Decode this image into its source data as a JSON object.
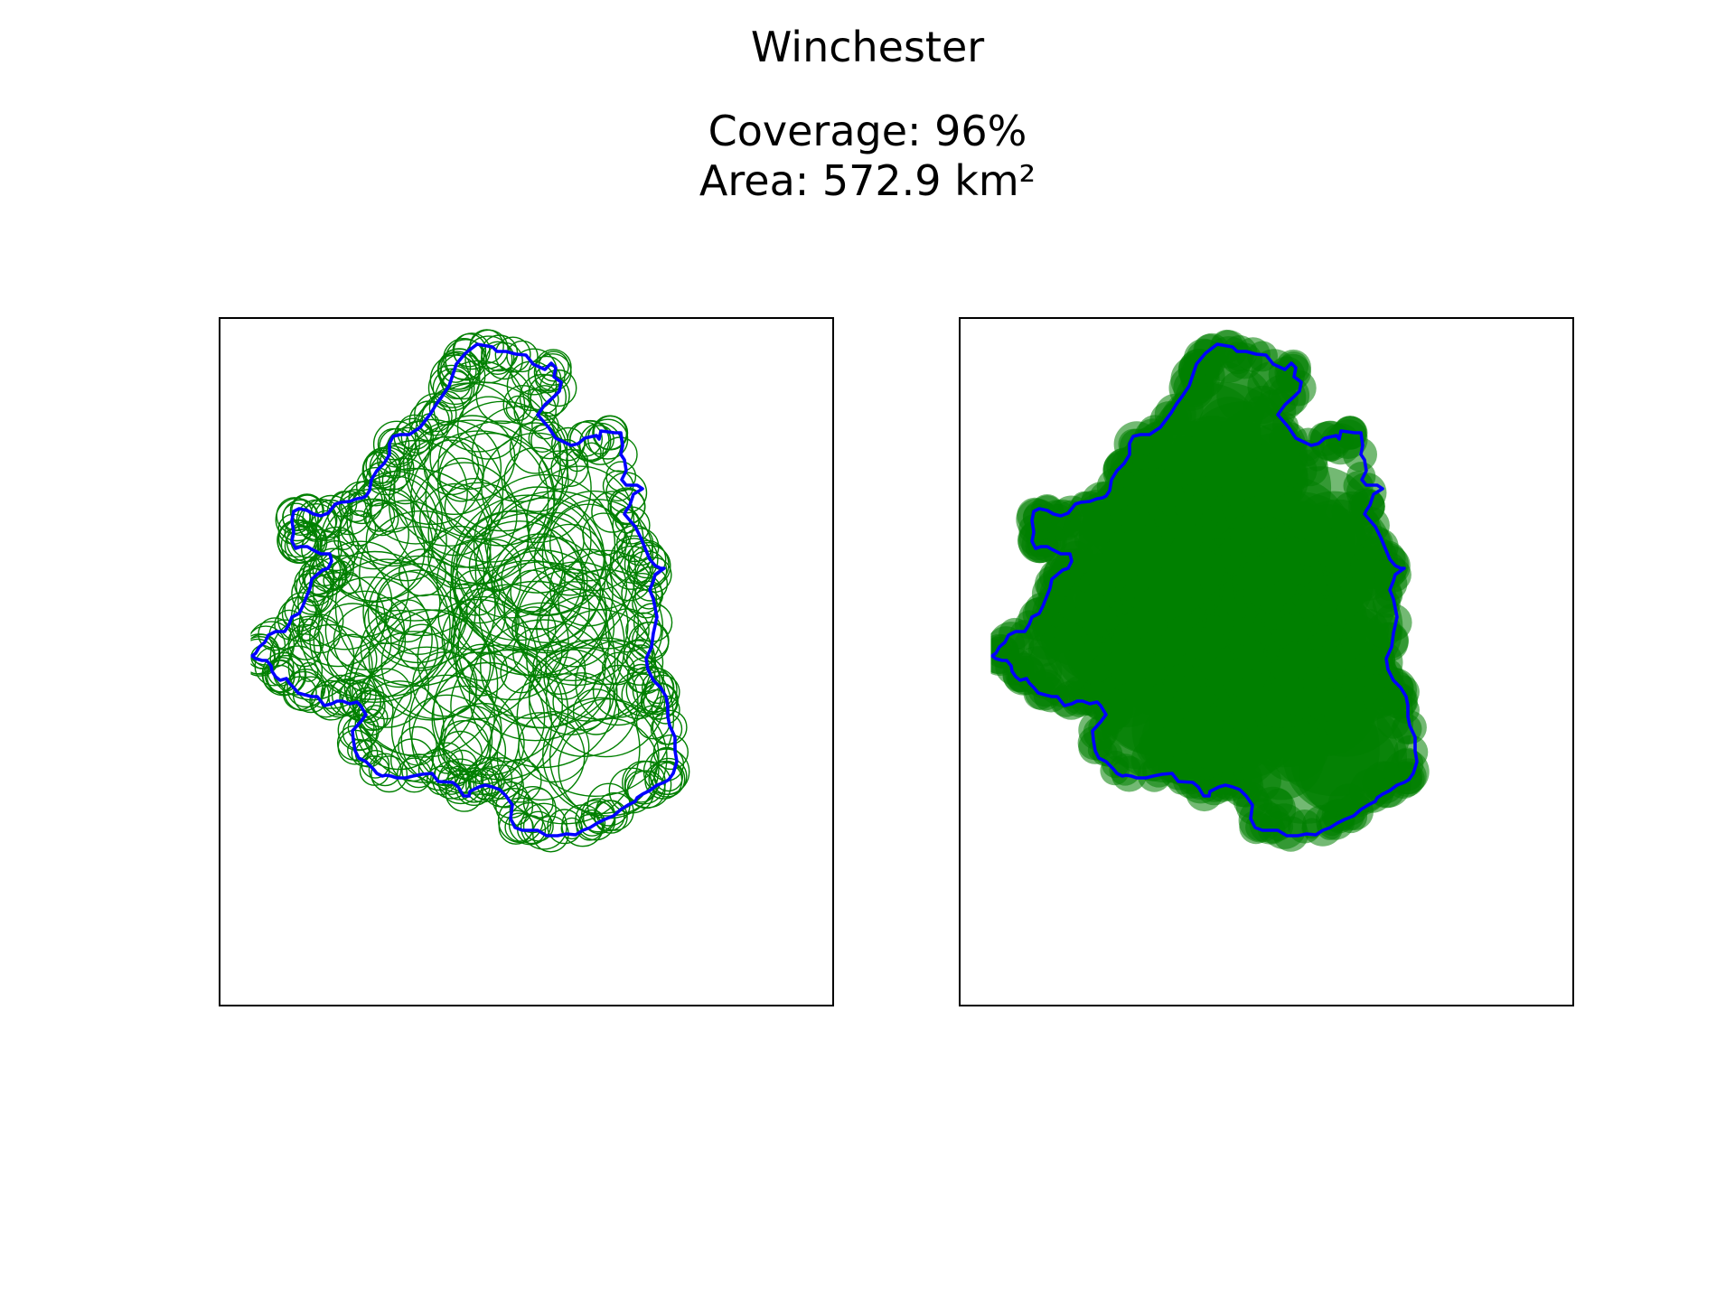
{
  "figure": {
    "title": "Winchester",
    "coverage_line": "Coverage: 96%",
    "area_line": "Area: 572.9 km²"
  },
  "stats": {
    "coverage_percent": 96,
    "area_km2": 572.9
  },
  "panels": [
    {
      "id": "outline-circles",
      "mode": "outline"
    },
    {
      "id": "filled-circles",
      "mode": "filled"
    }
  ],
  "colors": {
    "boundary": "#0000ff",
    "circles": "#008000",
    "frame": "#000000",
    "background": "#ffffff"
  }
}
